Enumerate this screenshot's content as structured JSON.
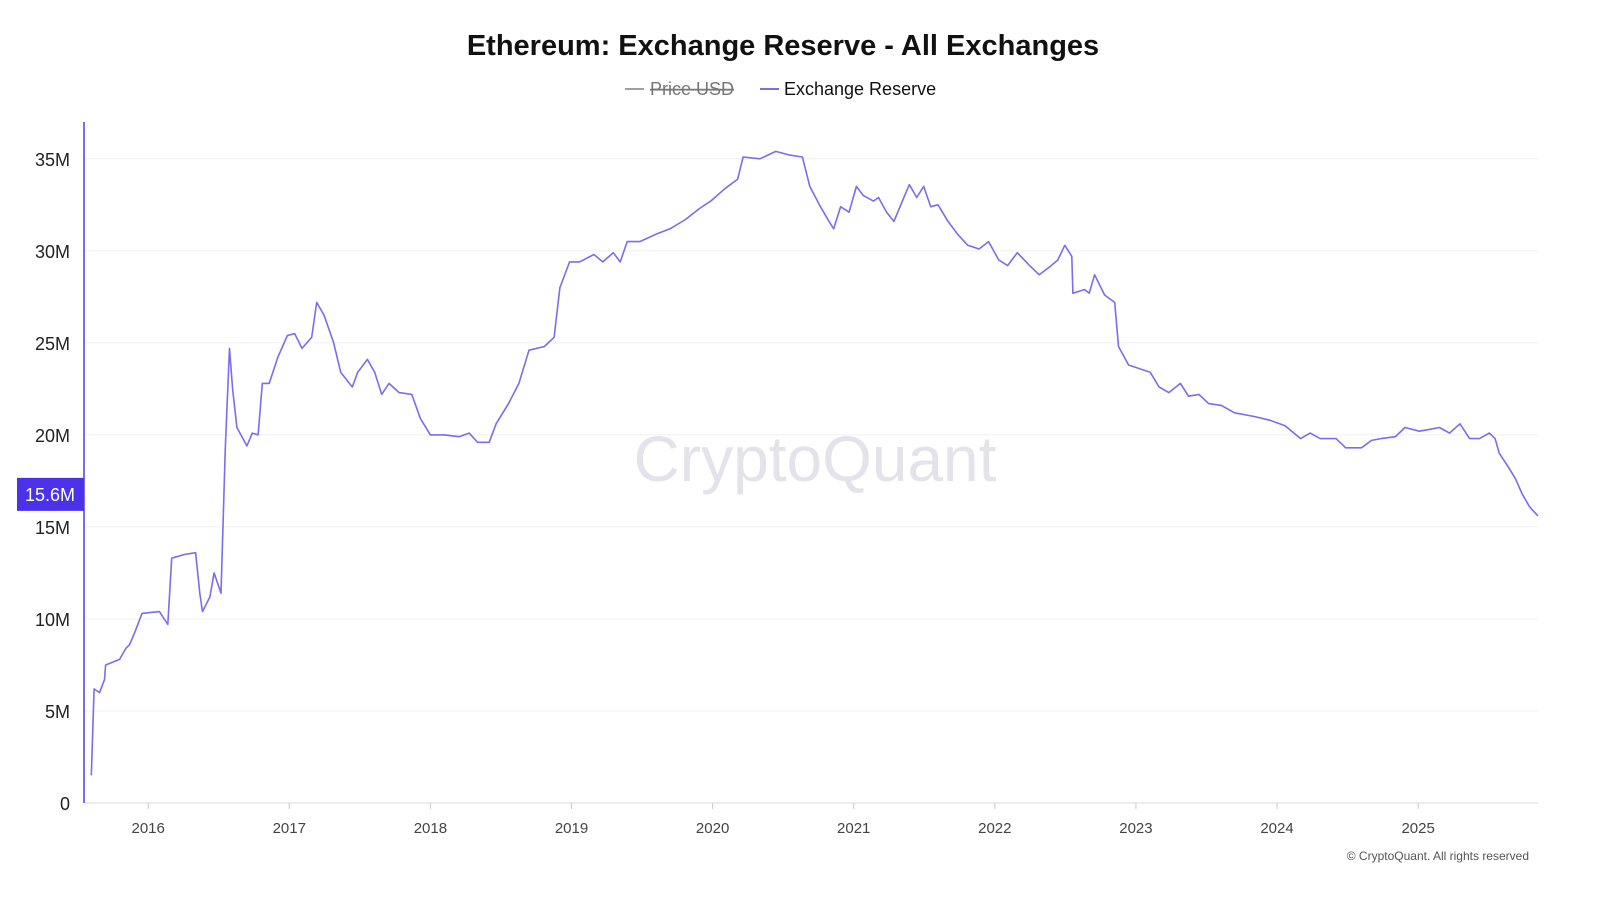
{
  "chart_data": {
    "type": "line",
    "title": "Ethereum: Exchange Reserve - All Exchanges",
    "legend": [
      {
        "name": "Price USD",
        "color": "#a0a0a0",
        "hidden": true
      },
      {
        "name": "Exchange Reserve",
        "color": "#7b6cf0",
        "hidden": false
      }
    ],
    "legend_placement": "top-center",
    "xlim": [
      "2015-07-19",
      "2025-11-07"
    ],
    "ylim": [
      0,
      37000000
    ],
    "x_ticks": [
      "2016",
      "2017",
      "2018",
      "2019",
      "2020",
      "2021",
      "2022",
      "2023",
      "2024",
      "2025"
    ],
    "y_ticks": [
      {
        "value": 0,
        "label": "0"
      },
      {
        "value": 5000000,
        "label": "5M"
      },
      {
        "value": 10000000,
        "label": "10M"
      },
      {
        "value": 15000000,
        "label": "15M"
      },
      {
        "value": 20000000,
        "label": "20M"
      },
      {
        "value": 25000000,
        "label": "25M"
      },
      {
        "value": 30000000,
        "label": "30M"
      },
      {
        "value": 35000000,
        "label": "35M"
      }
    ],
    "grid": true,
    "last_value_label": "15.6M",
    "last_value_color": "#4b32e8",
    "watermark": "CryptoQuant",
    "copyright": "© CryptoQuant. All rights reserved",
    "series": [
      {
        "name": "Exchange Reserve",
        "color": "#7b6cf0",
        "unit": "millions ETH",
        "points": [
          [
            "2015-08-07",
            1.5
          ],
          [
            "2015-08-14",
            6.2
          ],
          [
            "2015-08-28",
            6.0
          ],
          [
            "2015-09-10",
            6.7
          ],
          [
            "2015-09-13",
            7.5
          ],
          [
            "2015-10-19",
            7.8
          ],
          [
            "2015-11-04",
            8.4
          ],
          [
            "2015-11-14",
            8.6
          ],
          [
            "2015-11-28",
            9.3
          ],
          [
            "2015-12-16",
            10.3
          ],
          [
            "2016-01-30",
            10.4
          ],
          [
            "2016-02-21",
            9.7
          ],
          [
            "2016-03-02",
            13.3
          ],
          [
            "2016-04-04",
            13.5
          ],
          [
            "2016-05-03",
            13.6
          ],
          [
            "2016-05-14",
            11.4
          ],
          [
            "2016-05-21",
            10.4
          ],
          [
            "2016-06-09",
            11.2
          ],
          [
            "2016-06-20",
            12.5
          ],
          [
            "2016-07-08",
            11.4
          ],
          [
            "2016-07-19",
            19.3
          ],
          [
            "2016-07-30",
            24.7
          ],
          [
            "2016-08-07",
            22.5
          ],
          [
            "2016-08-18",
            20.4
          ],
          [
            "2016-09-13",
            19.4
          ],
          [
            "2016-09-27",
            20.1
          ],
          [
            "2016-10-12",
            20.0
          ],
          [
            "2016-10-23",
            22.8
          ],
          [
            "2016-11-10",
            22.8
          ],
          [
            "2016-12-02",
            24.2
          ],
          [
            "2016-12-27",
            25.4
          ],
          [
            "2017-01-15",
            25.5
          ],
          [
            "2017-02-03",
            24.7
          ],
          [
            "2017-02-28",
            25.3
          ],
          [
            "2017-03-13",
            27.2
          ],
          [
            "2017-04-01",
            26.5
          ],
          [
            "2017-04-26",
            25.0
          ],
          [
            "2017-05-14",
            23.4
          ],
          [
            "2017-06-13",
            22.6
          ],
          [
            "2017-06-27",
            23.4
          ],
          [
            "2017-07-22",
            24.1
          ],
          [
            "2017-08-10",
            23.4
          ],
          [
            "2017-08-28",
            22.2
          ],
          [
            "2017-09-16",
            22.8
          ],
          [
            "2017-10-12",
            22.3
          ],
          [
            "2017-11-14",
            22.2
          ],
          [
            "2017-12-06",
            20.9
          ],
          [
            "2018-01-01",
            20.0
          ],
          [
            "2018-02-07",
            20.0
          ],
          [
            "2018-03-16",
            19.9
          ],
          [
            "2018-04-11",
            20.1
          ],
          [
            "2018-05-03",
            19.6
          ],
          [
            "2018-06-02",
            19.6
          ],
          [
            "2018-06-20",
            20.6
          ],
          [
            "2018-07-22",
            21.7
          ],
          [
            "2018-08-18",
            22.8
          ],
          [
            "2018-09-13",
            24.6
          ],
          [
            "2018-10-23",
            24.8
          ],
          [
            "2018-11-17",
            25.3
          ],
          [
            "2018-12-02",
            28.0
          ],
          [
            "2018-12-27",
            29.4
          ],
          [
            "2019-01-22",
            29.4
          ],
          [
            "2019-02-28",
            29.8
          ],
          [
            "2019-03-23",
            29.4
          ],
          [
            "2019-04-19",
            29.9
          ],
          [
            "2019-05-07",
            29.4
          ],
          [
            "2019-05-25",
            30.5
          ],
          [
            "2019-06-27",
            30.5
          ],
          [
            "2019-08-07",
            30.9
          ],
          [
            "2019-09-13",
            31.2
          ],
          [
            "2019-10-23",
            31.7
          ],
          [
            "2019-11-28",
            32.3
          ],
          [
            "2019-12-27",
            32.7
          ],
          [
            "2020-02-03",
            33.4
          ],
          [
            "2020-03-06",
            33.9
          ],
          [
            "2020-03-20",
            35.1
          ],
          [
            "2020-05-03",
            35.0
          ],
          [
            "2020-06-13",
            35.4
          ],
          [
            "2020-07-19",
            35.2
          ],
          [
            "2020-08-21",
            35.1
          ],
          [
            "2020-09-09",
            33.5
          ],
          [
            "2020-10-04",
            32.5
          ],
          [
            "2020-10-29",
            31.6
          ],
          [
            "2020-11-10",
            31.2
          ],
          [
            "2020-11-28",
            32.4
          ],
          [
            "2020-12-20",
            32.1
          ],
          [
            "2021-01-08",
            33.5
          ],
          [
            "2021-01-26",
            33.0
          ],
          [
            "2021-02-21",
            32.7
          ],
          [
            "2021-03-06",
            32.9
          ],
          [
            "2021-03-27",
            32.1
          ],
          [
            "2021-04-15",
            31.6
          ],
          [
            "2021-05-07",
            32.7
          ],
          [
            "2021-05-25",
            33.6
          ],
          [
            "2021-06-13",
            32.9
          ],
          [
            "2021-07-01",
            33.5
          ],
          [
            "2021-07-19",
            32.4
          ],
          [
            "2021-08-07",
            32.5
          ],
          [
            "2021-09-02",
            31.6
          ],
          [
            "2021-09-27",
            30.9
          ],
          [
            "2021-10-23",
            30.3
          ],
          [
            "2021-11-21",
            30.1
          ],
          [
            "2021-12-16",
            30.5
          ],
          [
            "2022-01-11",
            29.5
          ],
          [
            "2022-02-03",
            29.2
          ],
          [
            "2022-02-28",
            29.9
          ],
          [
            "2022-04-01",
            29.2
          ],
          [
            "2022-04-26",
            28.7
          ],
          [
            "2022-05-21",
            29.1
          ],
          [
            "2022-06-13",
            29.5
          ],
          [
            "2022-07-01",
            30.3
          ],
          [
            "2022-07-19",
            29.7
          ],
          [
            "2022-07-22",
            27.7
          ],
          [
            "2022-08-21",
            27.9
          ],
          [
            "2022-09-02",
            27.7
          ],
          [
            "2022-09-16",
            28.7
          ],
          [
            "2022-10-12",
            27.6
          ],
          [
            "2022-11-07",
            27.2
          ],
          [
            "2022-11-17",
            24.8
          ],
          [
            "2022-12-13",
            23.8
          ],
          [
            "2023-02-07",
            23.4
          ],
          [
            "2023-03-02",
            22.6
          ],
          [
            "2023-03-27",
            22.3
          ],
          [
            "2023-04-26",
            22.8
          ],
          [
            "2023-05-17",
            22.1
          ],
          [
            "2023-06-13",
            22.2
          ],
          [
            "2023-07-08",
            21.7
          ],
          [
            "2023-08-10",
            21.6
          ],
          [
            "2023-09-13",
            21.2
          ],
          [
            "2023-11-03",
            21.0
          ],
          [
            "2023-12-13",
            20.8
          ],
          [
            "2024-01-22",
            20.5
          ],
          [
            "2024-03-02",
            19.8
          ],
          [
            "2024-03-27",
            20.1
          ],
          [
            "2024-04-22",
            19.8
          ],
          [
            "2024-06-02",
            19.8
          ],
          [
            "2024-06-27",
            19.3
          ],
          [
            "2024-08-07",
            19.3
          ],
          [
            "2024-09-02",
            19.7
          ],
          [
            "2024-09-27",
            19.8
          ],
          [
            "2024-11-03",
            19.9
          ],
          [
            "2024-11-28",
            20.4
          ],
          [
            "2025-01-04",
            20.2
          ],
          [
            "2025-01-30",
            20.3
          ],
          [
            "2025-02-25",
            20.4
          ],
          [
            "2025-03-23",
            20.1
          ],
          [
            "2025-04-19",
            20.6
          ],
          [
            "2025-05-14",
            19.8
          ],
          [
            "2025-06-09",
            19.8
          ],
          [
            "2025-07-04",
            20.1
          ],
          [
            "2025-07-19",
            19.8
          ],
          [
            "2025-07-30",
            19.0
          ],
          [
            "2025-08-21",
            18.3
          ],
          [
            "2025-09-10",
            17.6
          ],
          [
            "2025-09-27",
            16.8
          ],
          [
            "2025-10-16",
            16.1
          ],
          [
            "2025-11-07",
            15.6
          ]
        ]
      }
    ]
  }
}
